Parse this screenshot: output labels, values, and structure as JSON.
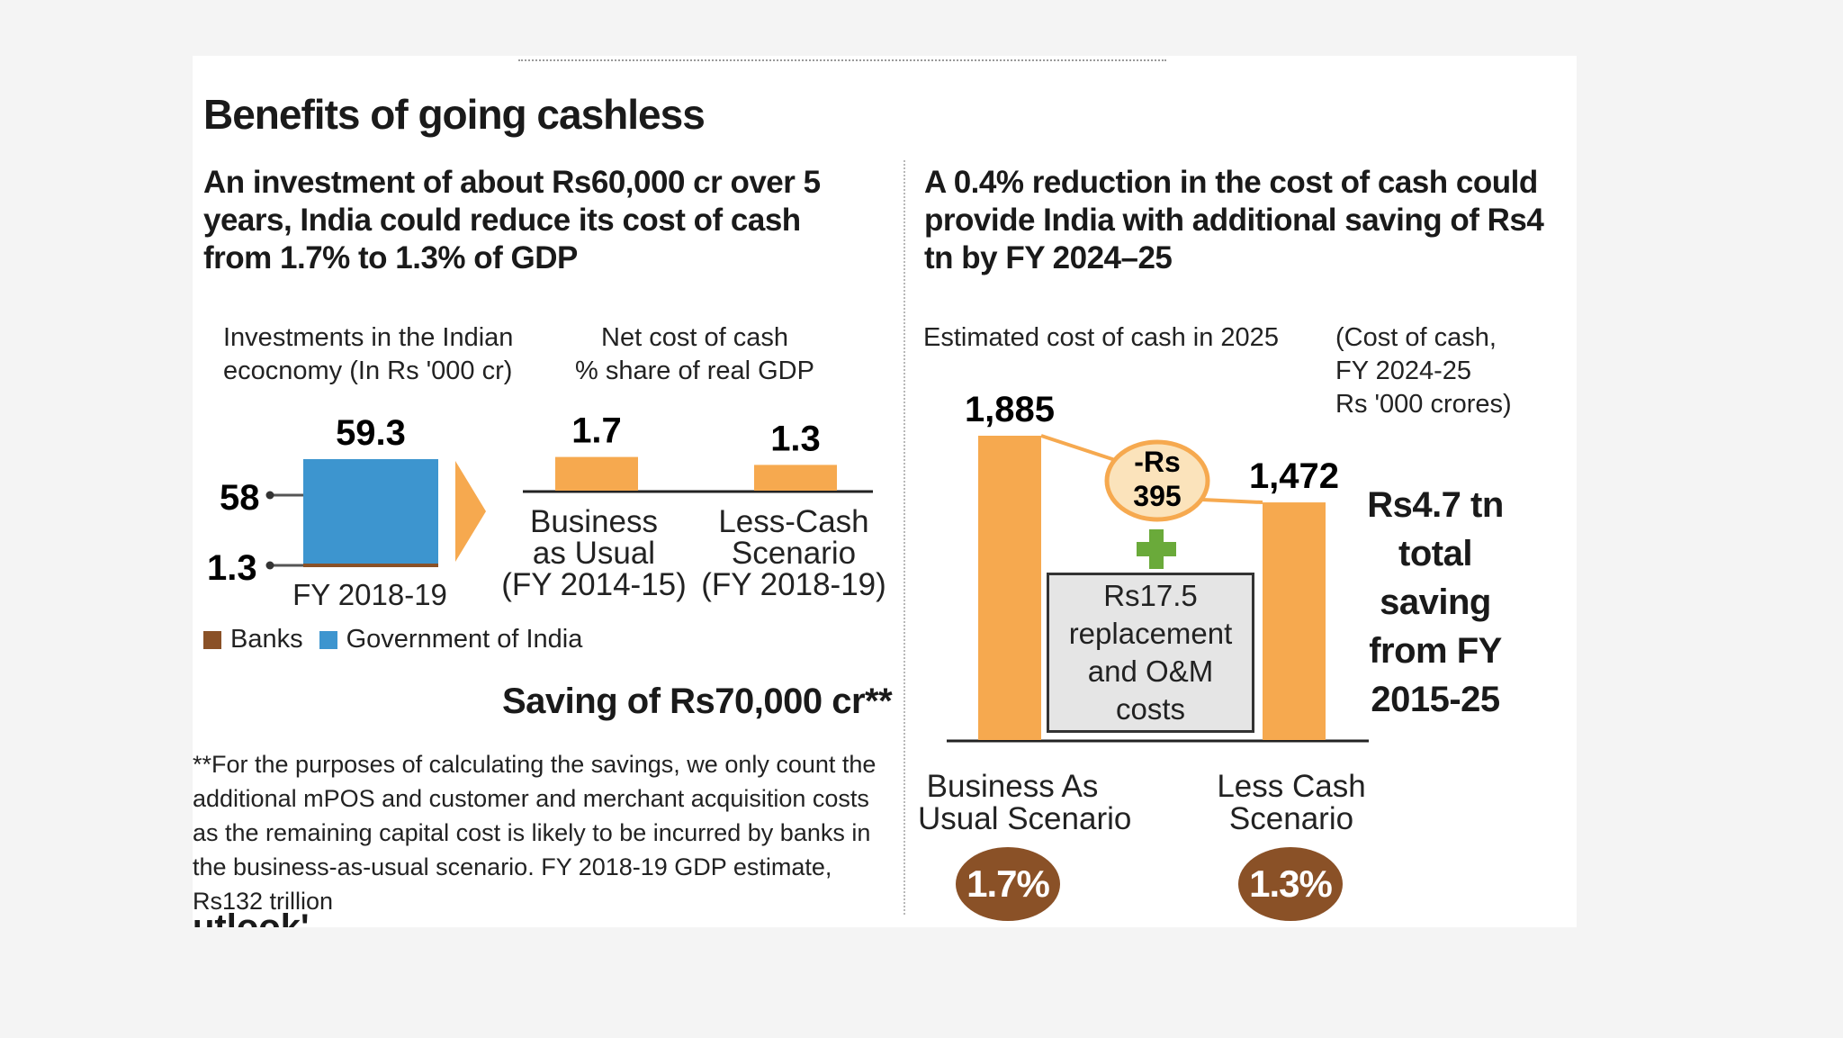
{
  "title": "Benefits of going cashless",
  "left": {
    "subhead": "An investment of about Rs60,000 cr over 5 years, India could reduce its cost of cash from 1.7% to 1.3% of GDP",
    "investment_caption_line1": "Investments in the Indian",
    "investment_caption_line2": "ecocnomy (In Rs '000 cr)",
    "netcost_caption_line1": "Net cost of cash",
    "netcost_caption_line2": "% share of real GDP",
    "legend": [
      {
        "label": "Banks",
        "color": "#8a5127"
      },
      {
        "label": "Government of India",
        "color": "#3d95cf"
      }
    ],
    "saving": "Saving of Rs70,000 cr**",
    "footnote": "**For the purposes of calculating the savings, we only count the additional mPOS and customer and merchant acquisition costs as the remaining capital cost is likely to be incurred by banks in the business-as-usual scenario. FY 2018-19 GDP estimate, Rs132 trillion",
    "source_fragment": "utlook'"
  },
  "right": {
    "subhead": "A 0.4% reduction in the cost of cash could provide India with additional saving of Rs4 tn by FY 2024–25",
    "estimated_caption": "Estimated cost of cash in 2025",
    "unit_caption_line1": "(Cost of cash,",
    "unit_caption_line2": "FY 2024-25",
    "unit_caption_line3": "Rs '000 crores)",
    "difference_line1": "-Rs",
    "difference_line2": "395",
    "plus_sign": "+",
    "replacement_box": "Rs17.5 replacement and O&M costs",
    "total_saving": "Rs4.7 tn total saving from FY 2015-25",
    "scenario1_line1": "Business As",
    "scenario1_line2": "Usual Scenario",
    "scenario2_line1": "Less Cash",
    "scenario2_line2": "Scenario",
    "scenario1_pct": "1.7%",
    "scenario2_pct": "1.3%"
  },
  "colors": {
    "orange_bar": "#f6a94f",
    "blue_bar": "#3d95cf",
    "brown": "#8a5127",
    "green_plus": "#6aaa3a",
    "oval_fill": "#fbe3bb",
    "oval_stroke": "#f6a94f",
    "background": "#ffffff"
  },
  "chart_data": [
    {
      "type": "bar",
      "stacked": true,
      "categories": [
        "FY 2018-19"
      ],
      "series": [
        {
          "name": "Government of India",
          "values": [
            58
          ]
        },
        {
          "name": "Banks",
          "values": [
            1.3
          ]
        }
      ],
      "total_label": "59.3",
      "segment_labels": [
        "58",
        "1.3"
      ]
    },
    {
      "type": "bar",
      "categories": [
        "Business as Usual (FY 2014-15)",
        "Less-Cash Scenario (FY 2018-19)"
      ],
      "category_lines": [
        [
          "Business",
          "as Usual",
          "(FY 2014-15)"
        ],
        [
          "Less-Cash",
          "Scenario",
          "(FY 2018-19)"
        ]
      ],
      "values": [
        1.7,
        1.3
      ],
      "value_labels": [
        "1.7",
        "1.3"
      ]
    },
    {
      "type": "bar",
      "categories": [
        "Business As Usual Scenario",
        "Less Cash Scenario"
      ],
      "values": [
        1885,
        1472
      ],
      "value_labels": [
        "1,885",
        "1,472"
      ]
    }
  ]
}
